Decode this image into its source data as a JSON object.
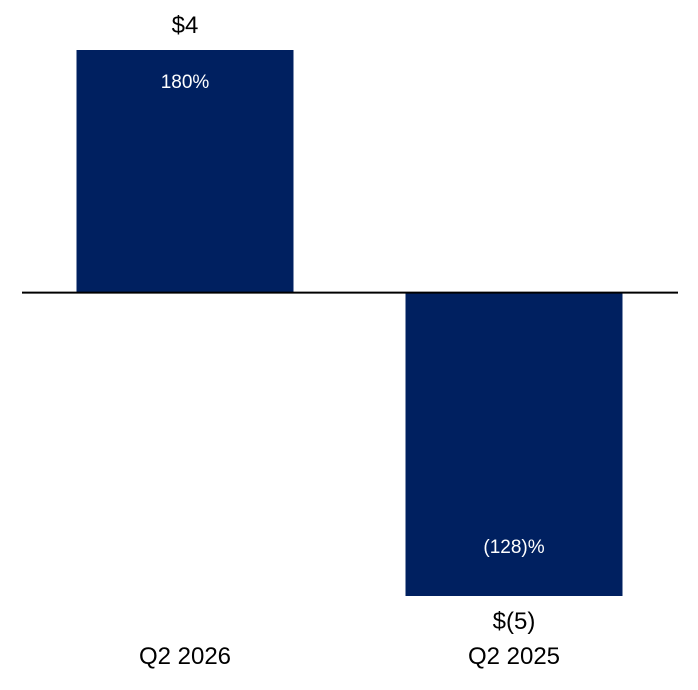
{
  "chart_data": {
    "type": "bar",
    "categories": [
      "Q2 2026",
      "Q2 2025"
    ],
    "values": [
      4,
      -5
    ],
    "value_labels": [
      "$4",
      "$(5)"
    ],
    "inner_labels": [
      "180%",
      "(128)%"
    ],
    "ylim": [
      -5,
      4
    ],
    "title": "",
    "xlabel": "",
    "ylabel": "",
    "grid": false,
    "legend": "none",
    "bar_color": "#002060",
    "axis_color": "#000000"
  }
}
